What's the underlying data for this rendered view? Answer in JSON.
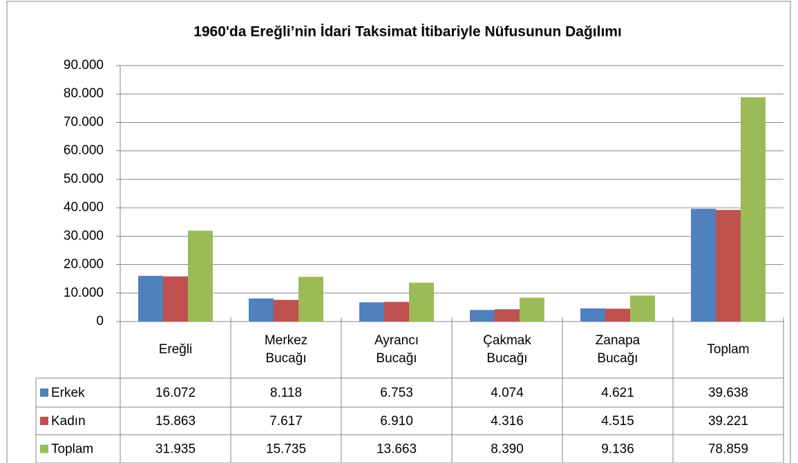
{
  "chart_data": {
    "type": "bar",
    "title": "1960'da Ereğli’nin İdari Taksimat İtibariyle Nüfusunun Dağılımı",
    "categories": [
      "Ereğli",
      "Merkez Bucağı",
      "Ayrancı Bucağı",
      "Çakmak Bucağı",
      "Zanapa Bucağı",
      "Toplam"
    ],
    "series": [
      {
        "name": "Erkek",
        "color": "#4f81bd",
        "values": [
          16072,
          8118,
          6753,
          4074,
          4621,
          39638
        ],
        "value_labels": [
          "16.072",
          "8.118",
          "6.753",
          "4.074",
          "4.621",
          "39.638"
        ]
      },
      {
        "name": "Kadın",
        "color": "#c0504d",
        "values": [
          15863,
          7617,
          6910,
          4316,
          4515,
          39221
        ],
        "value_labels": [
          "15.863",
          "7.617",
          "6.910",
          "4.316",
          "4.515",
          "39.221"
        ]
      },
      {
        "name": "Toplam",
        "color": "#9bbb59",
        "values": [
          31935,
          15735,
          13663,
          8390,
          9136,
          78859
        ],
        "value_labels": [
          "31.935",
          "15.735",
          "13.663",
          "8.390",
          "9.136",
          "78.859"
        ]
      }
    ],
    "ylim": [
      0,
      90000
    ],
    "yticks": [
      0,
      {
        "value": 10000,
        "label": "10.000"
      },
      {
        "value": 20000,
        "label": "20.000"
      },
      {
        "value": 30000,
        "label": "30.000"
      },
      {
        "value": 40000,
        "label": "40.000"
      },
      {
        "value": 50000,
        "label": "50.000"
      },
      {
        "value": 60000,
        "label": "60.000"
      },
      {
        "value": 70000,
        "label": "70.000"
      },
      {
        "value": 80000,
        "label": "80.000"
      },
      {
        "value": 90000,
        "label": "90.000"
      }
    ],
    "grid": true
  }
}
